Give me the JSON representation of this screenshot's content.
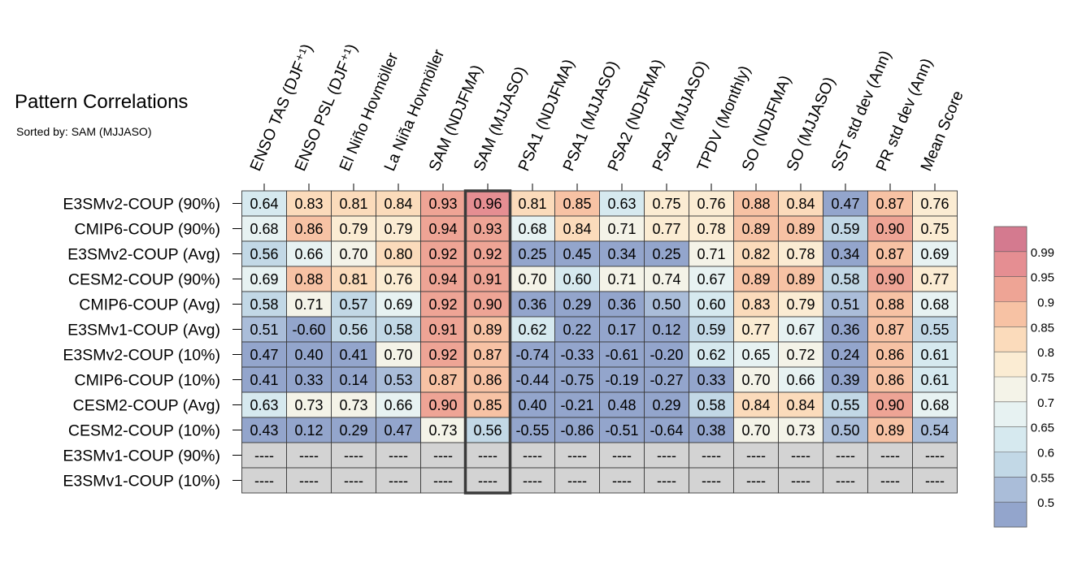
{
  "chart_data": {
    "type": "heatmap",
    "title": "Pattern Correlations",
    "subtitle": "Sorted by: SAM (MJJASO)",
    "highlight_column": "SAM (MJJASO)",
    "columns": [
      "ENSO TAS (DJF⁺¹)",
      "ENSO PSL (DJF⁺¹)",
      "El Niño Hovmöller",
      "La Niña Hovmöller",
      "SAM (NDJFMA)",
      "SAM (MJJASO)",
      "PSA1 (NDJFMA)",
      "PSA1 (MJJASO)",
      "PSA2 (NDJFMA)",
      "PSA2 (MJJASO)",
      "TPDV (Monthly)",
      "SO (NDJFMA)",
      "SO (MJJASO)",
      "SST std dev (Ann)",
      "PR std dev (Ann)",
      "Mean Score"
    ],
    "rows": [
      "E3SMv2-COUP (90%)",
      "CMIP6-COUP (90%)",
      "E3SMv2-COUP (Avg)",
      "CESM2-COUP (90%)",
      "CMIP6-COUP (Avg)",
      "E3SMv1-COUP (Avg)",
      "E3SMv2-COUP (10%)",
      "CMIP6-COUP (10%)",
      "CESM2-COUP (Avg)",
      "CESM2-COUP (10%)",
      "E3SMv1-COUP (90%)",
      "E3SMv1-COUP (10%)"
    ],
    "values": [
      [
        "0.64",
        "0.83",
        "0.81",
        "0.84",
        "0.93",
        "0.96",
        "0.81",
        "0.85",
        "0.63",
        "0.75",
        "0.76",
        "0.88",
        "0.84",
        "0.47",
        "0.87",
        "0.76"
      ],
      [
        "0.68",
        "0.86",
        "0.79",
        "0.79",
        "0.94",
        "0.93",
        "0.68",
        "0.84",
        "0.71",
        "0.77",
        "0.78",
        "0.89",
        "0.89",
        "0.59",
        "0.90",
        "0.75"
      ],
      [
        "0.56",
        "0.66",
        "0.70",
        "0.80",
        "0.92",
        "0.92",
        "0.25",
        "0.45",
        "0.34",
        "0.25",
        "0.71",
        "0.82",
        "0.78",
        "0.34",
        "0.87",
        "0.69"
      ],
      [
        "0.69",
        "0.88",
        "0.81",
        "0.76",
        "0.94",
        "0.91",
        "0.70",
        "0.60",
        "0.71",
        "0.74",
        "0.67",
        "0.89",
        "0.89",
        "0.58",
        "0.90",
        "0.77"
      ],
      [
        "0.58",
        "0.71",
        "0.57",
        "0.69",
        "0.92",
        "0.90",
        "0.36",
        "0.29",
        "0.36",
        "0.50",
        "0.60",
        "0.83",
        "0.79",
        "0.51",
        "0.88",
        "0.68"
      ],
      [
        "0.51",
        "-0.60",
        "0.56",
        "0.58",
        "0.91",
        "0.89",
        "0.62",
        "0.22",
        "0.17",
        "0.12",
        "0.59",
        "0.77",
        "0.67",
        "0.36",
        "0.87",
        "0.55"
      ],
      [
        "0.47",
        "0.40",
        "0.41",
        "0.70",
        "0.92",
        "0.87",
        "-0.74",
        "-0.33",
        "-0.61",
        "-0.20",
        "0.62",
        "0.65",
        "0.72",
        "0.24",
        "0.86",
        "0.61"
      ],
      [
        "0.41",
        "0.33",
        "0.14",
        "0.53",
        "0.87",
        "0.86",
        "-0.44",
        "-0.75",
        "-0.19",
        "-0.27",
        "0.33",
        "0.70",
        "0.66",
        "0.39",
        "0.86",
        "0.61"
      ],
      [
        "0.63",
        "0.73",
        "0.73",
        "0.66",
        "0.90",
        "0.85",
        "0.40",
        "-0.21",
        "0.48",
        "0.29",
        "0.58",
        "0.84",
        "0.84",
        "0.55",
        "0.90",
        "0.68"
      ],
      [
        "0.43",
        "0.12",
        "0.29",
        "0.47",
        "0.73",
        "0.56",
        "-0.55",
        "-0.86",
        "-0.51",
        "-0.64",
        "0.38",
        "0.70",
        "0.73",
        "0.50",
        "0.89",
        "0.54"
      ],
      [
        "----",
        "----",
        "----",
        "----",
        "----",
        "----",
        "----",
        "----",
        "----",
        "----",
        "----",
        "----",
        "----",
        "----",
        "----",
        "----"
      ],
      [
        "----",
        "----",
        "----",
        "----",
        "----",
        "----",
        "----",
        "----",
        "----",
        "----",
        "----",
        "----",
        "----",
        "----",
        "----",
        "----"
      ]
    ],
    "colorbar": {
      "levels": [
        "0.5",
        "0.55",
        "0.6",
        "0.65",
        "0.7",
        "0.75",
        "0.8",
        "0.85",
        "0.9",
        "0.95",
        "0.99"
      ],
      "colors": [
        "#93a5cc",
        "#aabdd9",
        "#c2d8e6",
        "#d6e9ef",
        "#e7f2f2",
        "#f4f3e8",
        "#fbecd3",
        "#fbdbbb",
        "#f7c2a4",
        "#eea495",
        "#e58e92",
        "#d47a8f"
      ],
      "missing_color": "#d3d3d3"
    }
  }
}
